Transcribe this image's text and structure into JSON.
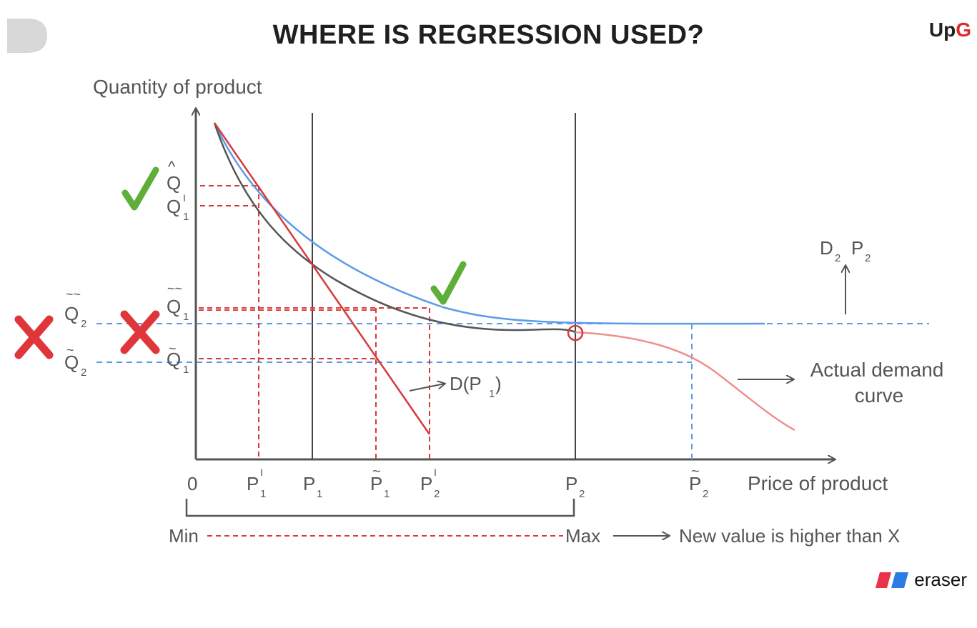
{
  "title": "WHERE IS REGRESSION USED?",
  "brand": {
    "prefix": "Up",
    "accent": "G"
  },
  "watermark": "eraser",
  "axes": {
    "y_label": "Quantity of product",
    "x_label": "Price of product",
    "origin": "0"
  },
  "x_ticks": [
    {
      "base": "P",
      "sup": "I",
      "sub": "1"
    },
    {
      "base": "P",
      "sup": "",
      "sub": "1"
    },
    {
      "base": "P",
      "sup": "~",
      "sub": "1"
    },
    {
      "base": "P",
      "sup": "I",
      "sub": "2"
    },
    {
      "base": "P",
      "sup": "",
      "sub": "2"
    },
    {
      "base": "P",
      "sup": "~",
      "sub": "2"
    }
  ],
  "y_ticks": [
    {
      "base": "Q",
      "sup": "^",
      "sub": ""
    },
    {
      "base": "Q",
      "sup": "I",
      "sub": "1"
    },
    {
      "base": "Q",
      "sup": "~~",
      "sub": "1"
    },
    {
      "base": "Q",
      "sup": "~",
      "sub": "1"
    },
    {
      "base": "Q",
      "sup": "~~",
      "sub": "2"
    },
    {
      "base": "Q",
      "sup": "~",
      "sub": "2"
    }
  ],
  "annotations": {
    "d_p1": "D(P",
    "d_p1_sub": "1",
    "d_p1_close": ")",
    "d2_p2": {
      "d": "D",
      "d_sub": "2",
      "p": "P",
      "p_sub": "2"
    },
    "actual_demand_line1": "Actual demand",
    "actual_demand_line2": "curve",
    "range_min": "Min",
    "range_max": "Max",
    "range_note": "New value is higher than X"
  },
  "colors": {
    "axis": "#555555",
    "actual_curve": "#555555",
    "regression_curve": "#5b9be8",
    "linear_fit": "#d73a3a",
    "extrapolated_curve": "#ef8f8f",
    "check": "#5fae3a",
    "cross": "#e0353b"
  }
}
